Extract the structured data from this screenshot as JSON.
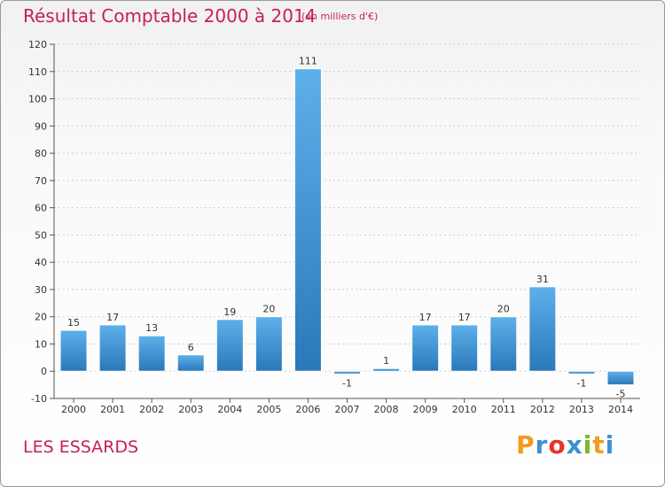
{
  "header": {
    "title": "Résultat Comptable 2000 à 2014",
    "subtitle": "(en milliers d'€)"
  },
  "footer": {
    "location": "LES ESSARDS",
    "brand": "Proxiti",
    "brand_colors": [
      "#f39a1e",
      "#3d8fd1",
      "#e8322b",
      "#3d8fd1",
      "#7ab929",
      "#f39a1e",
      "#3d8fd1"
    ]
  },
  "colors": {
    "accent": "#c81e5a",
    "bar_light": "#5eb0ea",
    "bar_dark": "#2a78ba",
    "axis": "#555555",
    "grid": "#cccccc"
  },
  "chart_data": {
    "type": "bar",
    "categories": [
      "2000",
      "2001",
      "2002",
      "2003",
      "2004",
      "2005",
      "2006",
      "2007",
      "2008",
      "2009",
      "2010",
      "2011",
      "2012",
      "2013",
      "2014"
    ],
    "values": [
      15,
      17,
      13,
      6,
      19,
      20,
      111,
      -1,
      1,
      17,
      17,
      20,
      31,
      -1,
      -5
    ],
    "ylim": [
      -10,
      120
    ],
    "yticks": [
      -10,
      0,
      10,
      20,
      30,
      40,
      50,
      60,
      70,
      80,
      90,
      100,
      110,
      120
    ],
    "grid": true,
    "legend": "none"
  }
}
